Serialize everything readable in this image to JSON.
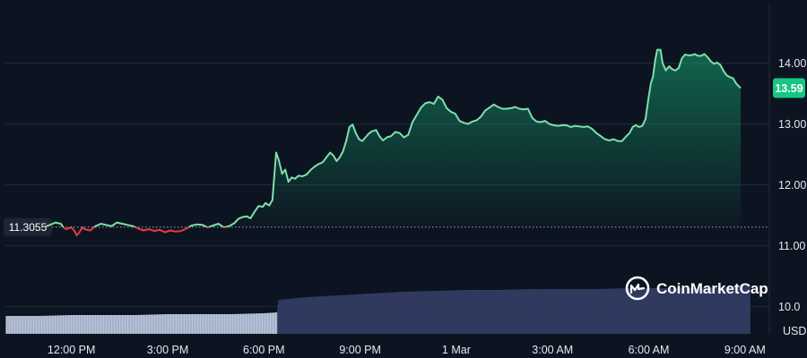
{
  "chart_data": {
    "type": "area",
    "currency": "USD",
    "reference_price": "11.3055",
    "last_price": "13.59",
    "watermark": "CoinMarketCap",
    "ylim": [
      9.55,
      14.95
    ],
    "y_ticks": [
      {
        "value": 10.0,
        "label": "10.0"
      },
      {
        "value": 11.0,
        "label": "11.00"
      },
      {
        "value": 12.0,
        "label": "12.00"
      },
      {
        "value": 13.0,
        "label": "13.00"
      },
      {
        "value": 14.0,
        "label": "14.00"
      }
    ],
    "x_ticks": [
      {
        "t": 120,
        "label": "12:00 PM"
      },
      {
        "t": 300,
        "label": "3:00 PM"
      },
      {
        "t": 480,
        "label": "6:00 PM"
      },
      {
        "t": 660,
        "label": "9:00 PM"
      },
      {
        "t": 840,
        "label": "1 Mar"
      },
      {
        "t": 1020,
        "label": "3:00 AM"
      },
      {
        "t": 1200,
        "label": "6:00 AM"
      },
      {
        "t": 1380,
        "label": "9:00 AM"
      }
    ],
    "x_range": [
      -3.6,
      1425.6
    ],
    "grid": true,
    "colors": {
      "background": "#0d1421",
      "up": "#7ee0a8",
      "down": "#ea3943",
      "badge": "#16c784",
      "grid": "#222b3a",
      "volume_before": "#b8c4dc",
      "volume_after": "#323d63"
    },
    "price": [
      [
        70,
        11.31
      ],
      [
        80,
        11.34
      ],
      [
        90,
        11.38
      ],
      [
        100,
        11.36
      ],
      [
        105,
        11.3
      ],
      [
        110,
        11.27
      ],
      [
        120,
        11.3
      ],
      [
        125,
        11.25
      ],
      [
        130,
        11.17
      ],
      [
        135,
        11.22
      ],
      [
        140,
        11.3
      ],
      [
        145,
        11.27
      ],
      [
        155,
        11.25
      ],
      [
        165,
        11.32
      ],
      [
        175,
        11.36
      ],
      [
        185,
        11.34
      ],
      [
        195,
        11.32
      ],
      [
        205,
        11.38
      ],
      [
        215,
        11.36
      ],
      [
        225,
        11.34
      ],
      [
        235,
        11.32
      ],
      [
        245,
        11.28
      ],
      [
        255,
        11.25
      ],
      [
        265,
        11.27
      ],
      [
        275,
        11.24
      ],
      [
        285,
        11.26
      ],
      [
        295,
        11.22
      ],
      [
        305,
        11.25
      ],
      [
        315,
        11.23
      ],
      [
        325,
        11.24
      ],
      [
        335,
        11.28
      ],
      [
        345,
        11.33
      ],
      [
        355,
        11.35
      ],
      [
        365,
        11.34
      ],
      [
        375,
        11.3
      ],
      [
        385,
        11.33
      ],
      [
        395,
        11.36
      ],
      [
        405,
        11.3
      ],
      [
        415,
        11.32
      ],
      [
        425,
        11.37
      ],
      [
        432,
        11.44
      ],
      [
        440,
        11.47
      ],
      [
        448,
        11.48
      ],
      [
        455,
        11.45
      ],
      [
        462,
        11.55
      ],
      [
        470,
        11.65
      ],
      [
        478,
        11.64
      ],
      [
        483,
        11.7
      ],
      [
        490,
        11.66
      ],
      [
        496,
        11.75
      ],
      [
        500,
        12.2
      ],
      [
        503,
        12.53
      ],
      [
        508,
        12.4
      ],
      [
        514,
        12.18
      ],
      [
        520,
        12.25
      ],
      [
        526,
        12.05
      ],
      [
        532,
        12.12
      ],
      [
        538,
        12.1
      ],
      [
        545,
        12.15
      ],
      [
        552,
        12.14
      ],
      [
        560,
        12.17
      ],
      [
        568,
        12.25
      ],
      [
        575,
        12.3
      ],
      [
        582,
        12.34
      ],
      [
        590,
        12.37
      ],
      [
        597,
        12.45
      ],
      [
        604,
        12.53
      ],
      [
        610,
        12.48
      ],
      [
        616,
        12.39
      ],
      [
        622,
        12.45
      ],
      [
        628,
        12.55
      ],
      [
        634,
        12.72
      ],
      [
        640,
        12.95
      ],
      [
        646,
        12.99
      ],
      [
        652,
        12.85
      ],
      [
        658,
        12.75
      ],
      [
        664,
        12.72
      ],
      [
        670,
        12.78
      ],
      [
        676,
        12.84
      ],
      [
        682,
        12.88
      ],
      [
        690,
        12.9
      ],
      [
        696,
        12.8
      ],
      [
        703,
        12.73
      ],
      [
        710,
        12.78
      ],
      [
        718,
        12.8
      ],
      [
        726,
        12.87
      ],
      [
        734,
        12.85
      ],
      [
        742,
        12.78
      ],
      [
        750,
        12.82
      ],
      [
        758,
        13.03
      ],
      [
        766,
        13.15
      ],
      [
        774,
        13.27
      ],
      [
        782,
        13.34
      ],
      [
        790,
        13.36
      ],
      [
        798,
        13.33
      ],
      [
        806,
        13.45
      ],
      [
        814,
        13.4
      ],
      [
        822,
        13.26
      ],
      [
        830,
        13.2
      ],
      [
        838,
        13.17
      ],
      [
        846,
        13.05
      ],
      [
        854,
        13.02
      ],
      [
        862,
        13.0
      ],
      [
        870,
        13.04
      ],
      [
        878,
        13.06
      ],
      [
        886,
        13.12
      ],
      [
        894,
        13.22
      ],
      [
        902,
        13.27
      ],
      [
        910,
        13.32
      ],
      [
        918,
        13.28
      ],
      [
        926,
        13.25
      ],
      [
        934,
        13.25
      ],
      [
        942,
        13.26
      ],
      [
        950,
        13.28
      ],
      [
        958,
        13.25
      ],
      [
        966,
        13.24
      ],
      [
        974,
        13.25
      ],
      [
        982,
        13.1
      ],
      [
        990,
        13.04
      ],
      [
        998,
        13.03
      ],
      [
        1006,
        13.05
      ],
      [
        1014,
        13.0
      ],
      [
        1022,
        12.98
      ],
      [
        1030,
        12.97
      ],
      [
        1038,
        12.98
      ],
      [
        1046,
        12.98
      ],
      [
        1054,
        12.95
      ],
      [
        1062,
        12.97
      ],
      [
        1070,
        12.96
      ],
      [
        1078,
        12.95
      ],
      [
        1086,
        12.96
      ],
      [
        1094,
        12.92
      ],
      [
        1102,
        12.85
      ],
      [
        1110,
        12.8
      ],
      [
        1118,
        12.75
      ],
      [
        1126,
        12.73
      ],
      [
        1134,
        12.75
      ],
      [
        1142,
        12.72
      ],
      [
        1150,
        12.72
      ],
      [
        1158,
        12.8
      ],
      [
        1164,
        12.85
      ],
      [
        1170,
        12.95
      ],
      [
        1176,
        12.98
      ],
      [
        1182,
        12.95
      ],
      [
        1188,
        12.97
      ],
      [
        1194,
        13.08
      ],
      [
        1200,
        13.45
      ],
      [
        1204,
        13.67
      ],
      [
        1208,
        13.78
      ],
      [
        1212,
        14.05
      ],
      [
        1216,
        14.22
      ],
      [
        1222,
        14.22
      ],
      [
        1226,
        14.0
      ],
      [
        1232,
        13.88
      ],
      [
        1238,
        13.95
      ],
      [
        1244,
        13.9
      ],
      [
        1250,
        13.88
      ],
      [
        1256,
        13.92
      ],
      [
        1262,
        14.08
      ],
      [
        1268,
        14.14
      ],
      [
        1274,
        14.13
      ],
      [
        1280,
        14.13
      ],
      [
        1286,
        14.15
      ],
      [
        1292,
        14.12
      ],
      [
        1298,
        14.12
      ],
      [
        1304,
        14.15
      ],
      [
        1310,
        14.1
      ],
      [
        1316,
        14.03
      ],
      [
        1322,
        13.99
      ],
      [
        1328,
        14.01
      ],
      [
        1334,
        13.97
      ],
      [
        1340,
        13.87
      ],
      [
        1346,
        13.8
      ],
      [
        1352,
        13.77
      ],
      [
        1358,
        13.75
      ],
      [
        1364,
        13.66
      ],
      [
        1372,
        13.59
      ]
    ],
    "volume_split": 510,
    "volume": [
      [
        -3,
        0.2
      ],
      [
        60,
        0.2
      ],
      [
        120,
        0.21
      ],
      [
        180,
        0.21
      ],
      [
        240,
        0.21
      ],
      [
        300,
        0.22
      ],
      [
        360,
        0.22
      ],
      [
        420,
        0.22
      ],
      [
        480,
        0.23
      ],
      [
        505,
        0.24
      ],
      [
        508,
        0.38
      ],
      [
        560,
        0.41
      ],
      [
        620,
        0.43
      ],
      [
        680,
        0.45
      ],
      [
        740,
        0.47
      ],
      [
        800,
        0.48
      ],
      [
        860,
        0.49
      ],
      [
        920,
        0.49
      ],
      [
        980,
        0.5
      ],
      [
        1040,
        0.5
      ],
      [
        1100,
        0.5
      ],
      [
        1160,
        0.51
      ],
      [
        1220,
        0.51
      ],
      [
        1280,
        0.51
      ],
      [
        1340,
        0.52
      ],
      [
        1380,
        0.54
      ],
      [
        1390,
        0.56
      ]
    ]
  }
}
